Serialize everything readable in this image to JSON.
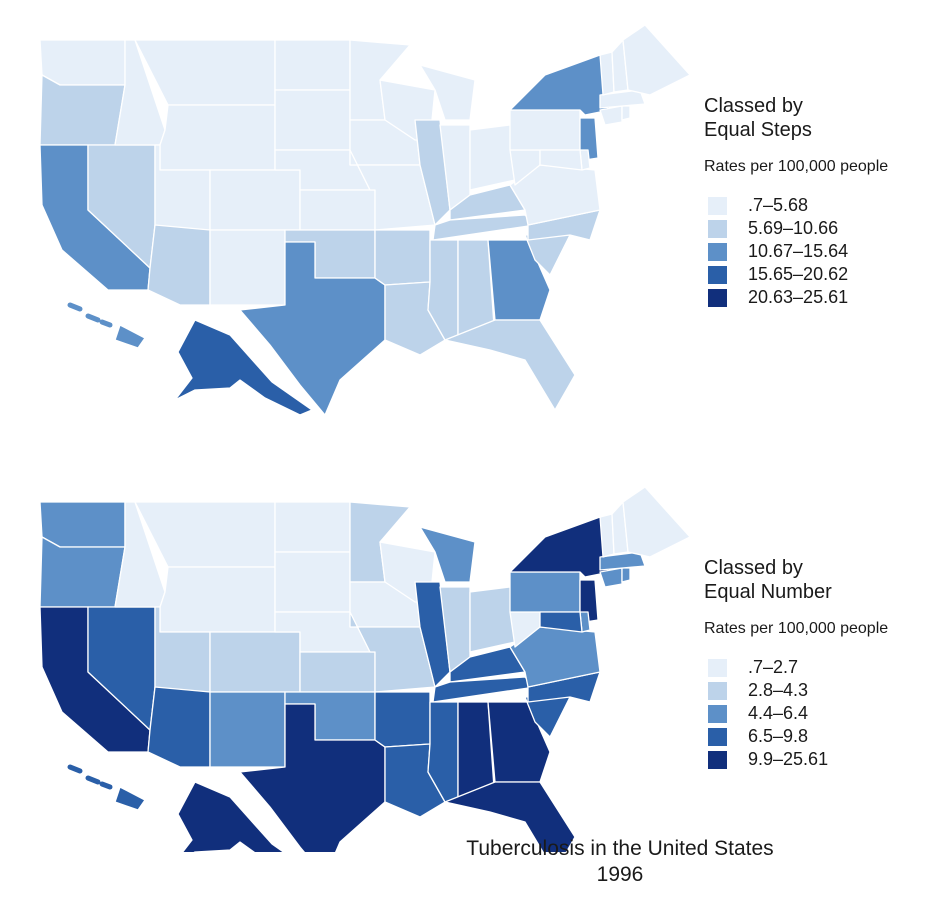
{
  "colors": {
    "class1": "#e6eff9",
    "class2": "#bdd3ea",
    "class3": "#5d90c8",
    "class4": "#2a5fa8",
    "class5": "#112f7c"
  },
  "equal_steps": {
    "title_line1": "Classed by",
    "title_line2": "Equal Steps",
    "units": "Rates per 100,000 people",
    "classes": [
      {
        "label": ".7–5.68",
        "color": "#e6eff9"
      },
      {
        "label": "5.69–10.66",
        "color": "#bdd3ea"
      },
      {
        "label": "10.67–15.64",
        "color": "#5d90c8"
      },
      {
        "label": "15.65–20.62",
        "color": "#2a5fa8"
      },
      {
        "label": "20.63–25.61",
        "color": "#112f7c"
      }
    ],
    "state_classes": {
      "WA": 1,
      "OR": 2,
      "CA": 3,
      "NV": 2,
      "ID": 1,
      "MT": 1,
      "WY": 1,
      "UT": 1,
      "AZ": 2,
      "NM": 1,
      "CO": 1,
      "ND": 1,
      "SD": 1,
      "NE": 1,
      "KS": 1,
      "OK": 2,
      "TX": 3,
      "MN": 1,
      "IA": 1,
      "MO": 1,
      "AR": 2,
      "LA": 2,
      "WI": 1,
      "IL": 2,
      "IN": 1,
      "MI": 1,
      "OH": 1,
      "KY": 2,
      "TN": 2,
      "MS": 2,
      "AL": 2,
      "GA": 3,
      "FL": 2,
      "SC": 2,
      "NC": 2,
      "VA": 1,
      "WV": 1,
      "PA": 1,
      "NY": 3,
      "NJ": 3,
      "VT": 1,
      "NH": 1,
      "ME": 1,
      "MA": 1,
      "CT": 1,
      "RI": 1,
      "DE": 1,
      "MD": 1,
      "AK": 4,
      "HI": 3
    }
  },
  "equal_number": {
    "title_line1": "Classed by",
    "title_line2": "Equal Number",
    "units": "Rates per 100,000 people",
    "classes": [
      {
        "label": ".7–2.7",
        "color": "#e6eff9"
      },
      {
        "label": "2.8–4.3",
        "color": "#bdd3ea"
      },
      {
        "label": "4.4–6.4",
        "color": "#5d90c8"
      },
      {
        "label": "6.5–9.8",
        "color": "#2a5fa8"
      },
      {
        "label": "9.9–25.61",
        "color": "#112f7c"
      }
    ],
    "state_classes": {
      "WA": 3,
      "OR": 3,
      "CA": 5,
      "NV": 4,
      "ID": 1,
      "MT": 1,
      "WY": 1,
      "UT": 2,
      "AZ": 4,
      "NM": 3,
      "CO": 2,
      "ND": 1,
      "SD": 1,
      "NE": 1,
      "KS": 2,
      "OK": 3,
      "TX": 5,
      "MN": 2,
      "IA": 1,
      "MO": 2,
      "AR": 4,
      "LA": 4,
      "WI": 1,
      "IL": 4,
      "IN": 2,
      "MI": 3,
      "OH": 2,
      "KY": 4,
      "TN": 4,
      "MS": 4,
      "AL": 5,
      "GA": 5,
      "FL": 5,
      "SC": 4,
      "NC": 4,
      "VA": 3,
      "WV": 1,
      "PA": 3,
      "NY": 5,
      "NJ": 5,
      "VT": 1,
      "NH": 1,
      "ME": 1,
      "MA": 3,
      "CT": 3,
      "RI": 3,
      "DE": 3,
      "MD": 4,
      "AK": 5,
      "HI": 4
    }
  },
  "caption": {
    "line1": "Tuberculosis in the United States",
    "line2": "1996"
  }
}
